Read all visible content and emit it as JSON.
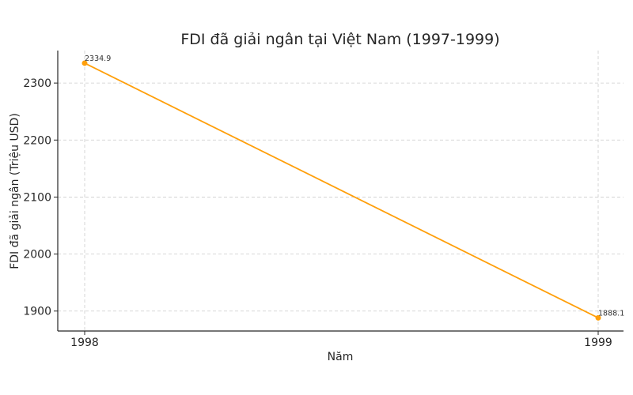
{
  "chart_data": {
    "type": "line",
    "title": "FDI đã giải ngân tại Việt Nam (1997-1999)",
    "xlabel": "Năm",
    "ylabel": "FDI đã giải ngân (Triệu USD)",
    "x": [
      "1998",
      "1999"
    ],
    "series": [
      {
        "values": [
          2334.9,
          1888.1
        ],
        "data_labels": [
          "2334.9",
          "1888.1"
        ],
        "color": "#ff9f0a"
      }
    ],
    "ylim": [
      1865,
      2357
    ],
    "yticks": [
      1900,
      2000,
      2100,
      2200,
      2300
    ],
    "grid": true,
    "marker": "circle"
  }
}
